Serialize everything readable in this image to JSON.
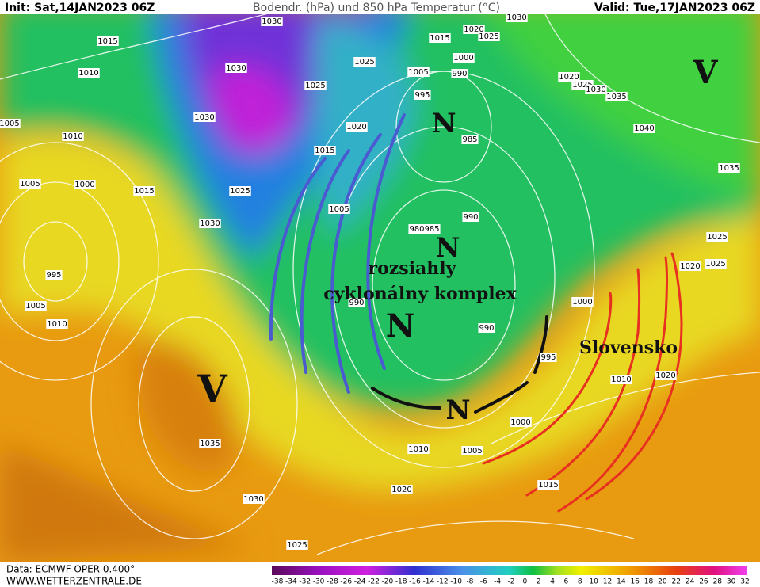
{
  "header": {
    "init": "Init: Sat,14JAN2023 06Z",
    "title": "Bodendr. (hPa) und 850 hPa Temperatur (°C)",
    "valid": "Valid: Tue,17JAN2023 06Z"
  },
  "annotations": {
    "line1": "rozsiahly",
    "line2": "cyklonálny komplex",
    "country": "Slovensko"
  },
  "pressure_centers": [
    "N",
    "N",
    "N",
    "N",
    "V",
    "V"
  ],
  "isobar_labels": [
    "1030",
    "1015",
    "1010",
    "1030",
    "1025",
    "1015",
    "1020",
    "1025",
    "1030",
    "1000",
    "1005",
    "990",
    "995",
    "1020",
    "1025",
    "1030",
    "1035",
    "1040",
    "1035",
    "1030",
    "1025",
    "1020",
    "1015",
    "1005",
    "1000",
    "1015",
    "1030",
    "1025",
    "1005",
    "985",
    "990",
    "985",
    "980",
    "995",
    "1005",
    "1010",
    "990",
    "990",
    "1000",
    "995",
    "1010",
    "1020",
    "1020",
    "1025",
    "1025",
    "1035",
    "1030",
    "1010",
    "1005",
    "1000",
    "1015",
    "1020",
    "1025",
    "1010",
    "1005"
  ],
  "colorbar": {
    "ticks": [
      -38,
      -34,
      -32,
      -30,
      -28,
      -26,
      -24,
      -22,
      -20,
      -18,
      -16,
      -14,
      -12,
      -10,
      -8,
      -6,
      -4,
      -2,
      0,
      2,
      4,
      6,
      8,
      10,
      12,
      14,
      16,
      18,
      20,
      22,
      24,
      26,
      28,
      30,
      32
    ]
  },
  "footer": {
    "source": "Data: ECMWF OPER 0.400°",
    "site": "WWW.WETTERZENTRALE.DE"
  }
}
